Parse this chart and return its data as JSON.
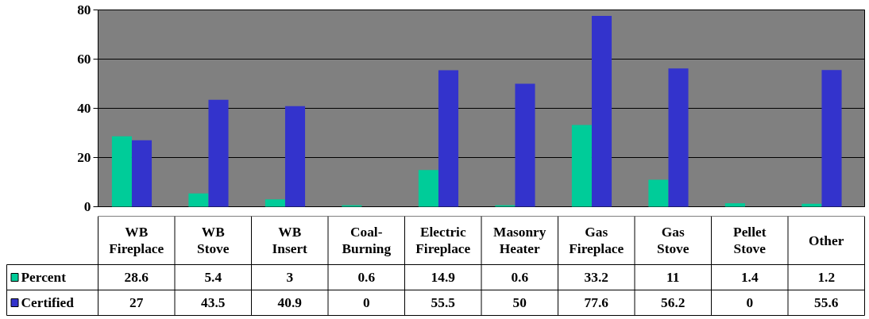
{
  "chart_data": {
    "type": "bar",
    "categories": [
      "WB Fireplace",
      "WB Stove",
      "WB Insert",
      "Coal-Burning",
      "Electric Fireplace",
      "Masonry Heater",
      "Gas Fireplace",
      "Gas Stove",
      "Pellet Stove",
      "Other"
    ],
    "series": [
      {
        "name": "Percent",
        "color": "#00cc99",
        "values": [
          28.6,
          5.4,
          3,
          0.6,
          14.9,
          0.6,
          33.2,
          11,
          1.4,
          1.2
        ]
      },
      {
        "name": "Certified",
        "color": "#3333cc",
        "values": [
          27,
          43.5,
          40.9,
          0,
          55.5,
          50,
          77.6,
          56.2,
          0,
          55.6
        ]
      }
    ],
    "ylim": [
      0,
      80
    ],
    "yticks": [
      0,
      20,
      40,
      60,
      80
    ],
    "grid": "y",
    "legend": "bottom",
    "data_labels": true
  }
}
